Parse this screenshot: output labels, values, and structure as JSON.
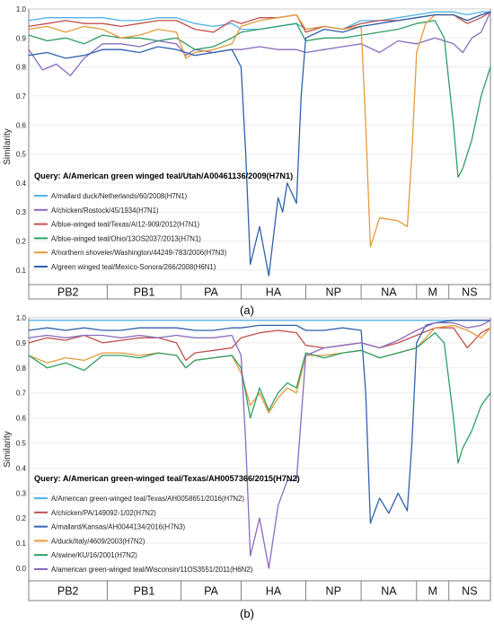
{
  "chart_data": [
    {
      "type": "line",
      "panel_label": "(a)",
      "ylabel": "Similarity",
      "ylim": [
        0.05,
        1.0
      ],
      "yticks": [
        "1.0",
        "0.9",
        "0.8",
        "0.7",
        "0.6",
        "0.5",
        "0.4",
        "0.3",
        "0.2",
        "0.1"
      ],
      "xlim": [
        0,
        100
      ],
      "segments": [
        {
          "name": "PB2",
          "start": 0,
          "end": 17
        },
        {
          "name": "PB1",
          "start": 17,
          "end": 33
        },
        {
          "name": "PA",
          "start": 33,
          "end": 46
        },
        {
          "name": "HA",
          "start": 46,
          "end": 60
        },
        {
          "name": "NP",
          "start": 60,
          "end": 72
        },
        {
          "name": "NA",
          "start": 72,
          "end": 84
        },
        {
          "name": "M",
          "start": 84,
          "end": 91
        },
        {
          "name": "NS",
          "start": 91,
          "end": 100
        }
      ],
      "query": "Query: A/American green winged teal/Utah/A00461136/2009(H7N1)",
      "series": [
        {
          "name": "A/mallard duck/Netherlands/60/2008(H7N1)",
          "color": "#4fb3e8",
          "x": [
            0,
            4,
            8,
            12,
            16,
            20,
            24,
            28,
            32,
            36,
            40,
            44,
            46,
            50,
            54,
            58,
            60,
            64,
            68,
            72,
            76,
            80,
            84,
            88,
            92,
            95,
            98,
            100
          ],
          "y": [
            0.96,
            0.97,
            0.97,
            0.97,
            0.97,
            0.96,
            0.96,
            0.97,
            0.97,
            0.95,
            0.94,
            0.95,
            0.93,
            0.93,
            0.94,
            0.95,
            0.93,
            0.94,
            0.93,
            0.96,
            0.96,
            0.97,
            0.98,
            0.99,
            0.99,
            0.98,
            0.99,
            0.99
          ]
        },
        {
          "name": "A/chicken/Rostock/45/1934(H7N1)",
          "color": "#8a6bbd",
          "x": [
            0,
            3,
            6,
            9,
            12,
            16,
            20,
            24,
            28,
            32,
            34,
            36,
            40,
            44,
            46,
            50,
            54,
            58,
            60,
            64,
            68,
            72,
            76,
            80,
            84,
            88,
            92,
            94,
            96,
            98,
            100
          ],
          "y": [
            0.86,
            0.79,
            0.81,
            0.77,
            0.83,
            0.88,
            0.88,
            0.87,
            0.89,
            0.88,
            0.84,
            0.86,
            0.85,
            0.86,
            0.86,
            0.87,
            0.86,
            0.86,
            0.85,
            0.86,
            0.87,
            0.88,
            0.85,
            0.89,
            0.88,
            0.9,
            0.88,
            0.85,
            0.9,
            0.92,
            0.99
          ]
        },
        {
          "name": "A/blue-winged teal/Texas/AI12-909/2012(H7N1)",
          "color": "#c0504d",
          "x": [
            0,
            4,
            8,
            12,
            16,
            20,
            24,
            28,
            32,
            36,
            40,
            44,
            46,
            50,
            54,
            58,
            60,
            64,
            68,
            72,
            76,
            80,
            84,
            88,
            92,
            95,
            98,
            100
          ],
          "y": [
            0.94,
            0.95,
            0.96,
            0.95,
            0.95,
            0.94,
            0.95,
            0.96,
            0.96,
            0.93,
            0.92,
            0.96,
            0.95,
            0.97,
            0.97,
            0.98,
            0.92,
            0.94,
            0.93,
            0.95,
            0.96,
            0.96,
            0.97,
            0.98,
            0.98,
            0.95,
            0.97,
            0.99
          ]
        },
        {
          "name": "A/blue-winged teal/Ohio/13OS2037/2013(H7N1)",
          "color": "#2e9e64",
          "x": [
            0,
            4,
            8,
            12,
            16,
            20,
            24,
            28,
            32,
            36,
            40,
            44,
            46,
            50,
            54,
            58,
            60,
            64,
            68,
            72,
            76,
            80,
            84,
            88,
            90,
            92,
            93,
            94,
            96,
            98,
            100
          ],
          "y": [
            0.91,
            0.89,
            0.9,
            0.88,
            0.91,
            0.9,
            0.9,
            0.89,
            0.9,
            0.86,
            0.87,
            0.9,
            0.92,
            0.93,
            0.94,
            0.95,
            0.89,
            0.9,
            0.9,
            0.91,
            0.92,
            0.93,
            0.95,
            0.96,
            0.9,
            0.6,
            0.42,
            0.45,
            0.55,
            0.7,
            0.8
          ]
        },
        {
          "name": "A/northern shoveler/Washington/44249-783/2006(H7N3)",
          "color": "#e59a3c",
          "x": [
            0,
            4,
            8,
            12,
            16,
            20,
            24,
            28,
            32,
            34,
            36,
            40,
            44,
            46,
            50,
            54,
            58,
            60,
            64,
            68,
            72,
            73,
            74,
            76,
            80,
            82,
            83,
            84,
            86,
            88,
            92,
            95,
            98,
            100
          ],
          "y": [
            0.93,
            0.94,
            0.92,
            0.94,
            0.93,
            0.9,
            0.91,
            0.93,
            0.92,
            0.83,
            0.85,
            0.86,
            0.88,
            0.94,
            0.96,
            0.97,
            0.98,
            0.93,
            0.94,
            0.93,
            0.94,
            0.6,
            0.18,
            0.28,
            0.27,
            0.25,
            0.5,
            0.85,
            0.95,
            0.98,
            0.98,
            0.96,
            0.98,
            0.99
          ]
        },
        {
          "name": "A/green winged teal/Mexico-Sonora/266/2008(H6N1)",
          "color": "#2e62ad",
          "x": [
            0,
            4,
            8,
            12,
            16,
            20,
            24,
            28,
            32,
            36,
            40,
            44,
            46,
            47,
            48,
            50,
            52,
            54,
            55,
            56,
            58,
            59,
            60,
            64,
            68,
            72,
            76,
            80,
            84,
            88,
            92,
            95,
            98,
            100
          ],
          "y": [
            0.84,
            0.85,
            0.83,
            0.84,
            0.86,
            0.86,
            0.85,
            0.87,
            0.86,
            0.84,
            0.85,
            0.86,
            0.8,
            0.5,
            0.12,
            0.25,
            0.08,
            0.35,
            0.3,
            0.4,
            0.33,
            0.7,
            0.9,
            0.93,
            0.92,
            0.94,
            0.95,
            0.96,
            0.97,
            0.98,
            0.98,
            0.96,
            0.98,
            0.99
          ]
        }
      ]
    },
    {
      "type": "line",
      "panel_label": "(b)",
      "ylabel": "Similarity",
      "ylim": [
        -0.05,
        1.0
      ],
      "yticks": [
        "1.0",
        "0.9",
        "0.8",
        "0.7",
        "0.6",
        "0.5",
        "0.4",
        "0.3",
        "0.2",
        "0.1",
        "0.0"
      ],
      "xlim": [
        0,
        100
      ],
      "segments": [
        {
          "name": "PB2",
          "start": 0,
          "end": 17
        },
        {
          "name": "PB1",
          "start": 17,
          "end": 33
        },
        {
          "name": "PA",
          "start": 33,
          "end": 46
        },
        {
          "name": "HA",
          "start": 46,
          "end": 60
        },
        {
          "name": "NP",
          "start": 60,
          "end": 72
        },
        {
          "name": "NA",
          "start": 72,
          "end": 84
        },
        {
          "name": "M",
          "start": 84,
          "end": 91
        },
        {
          "name": "NS",
          "start": 91,
          "end": 100
        }
      ],
      "query": "Query: A/American green-winged teal/Texas/AH0057366/2015(H7N2)",
      "series": [
        {
          "name": "A/American green-winged teal/Texas/AH0058651/2016(H7N2)",
          "color": "#4fb3e8",
          "x": [
            0,
            10,
            20,
            30,
            40,
            46,
            50,
            60,
            70,
            80,
            84,
            88,
            92,
            96,
            100
          ],
          "y": [
            0.99,
            0.99,
            0.99,
            0.99,
            0.99,
            0.99,
            0.99,
            0.99,
            0.99,
            0.99,
            0.99,
            0.99,
            0.99,
            0.99,
            0.99
          ]
        },
        {
          "name": "A/chicken/PA/149092-1/02(H7N2)",
          "color": "#c0504d",
          "x": [
            0,
            4,
            8,
            12,
            16,
            20,
            24,
            28,
            32,
            34,
            36,
            40,
            44,
            46,
            50,
            54,
            58,
            60,
            64,
            68,
            72,
            76,
            80,
            84,
            88,
            92,
            95,
            98,
            100
          ],
          "y": [
            0.9,
            0.92,
            0.91,
            0.93,
            0.9,
            0.91,
            0.92,
            0.92,
            0.9,
            0.83,
            0.86,
            0.87,
            0.88,
            0.92,
            0.94,
            0.95,
            0.94,
            0.89,
            0.88,
            0.89,
            0.9,
            0.88,
            0.9,
            0.93,
            0.96,
            0.96,
            0.88,
            0.94,
            0.96
          ]
        },
        {
          "name": "A/mallard/Kansas/AH0044134/2016(H7N3)",
          "color": "#2e62ad",
          "x": [
            0,
            4,
            8,
            12,
            16,
            20,
            24,
            28,
            32,
            36,
            40,
            44,
            46,
            50,
            54,
            58,
            60,
            64,
            68,
            72,
            73,
            74,
            76,
            78,
            80,
            82,
            83,
            84,
            86,
            88,
            92,
            95,
            98,
            100
          ],
          "y": [
            0.95,
            0.96,
            0.95,
            0.96,
            0.95,
            0.95,
            0.96,
            0.96,
            0.96,
            0.95,
            0.95,
            0.96,
            0.96,
            0.97,
            0.97,
            0.97,
            0.95,
            0.95,
            0.96,
            0.95,
            0.7,
            0.18,
            0.28,
            0.22,
            0.3,
            0.23,
            0.5,
            0.9,
            0.97,
            0.98,
            0.99,
            0.99,
            0.99,
            0.99
          ]
        },
        {
          "name": "A/duck/Italy/4609/2003(H7N2)",
          "color": "#e59a3c",
          "x": [
            0,
            4,
            8,
            12,
            16,
            20,
            24,
            28,
            32,
            34,
            36,
            40,
            44,
            46,
            48,
            50,
            52,
            54,
            56,
            58,
            60,
            64,
            68,
            72,
            76,
            80,
            84,
            88,
            92,
            95,
            98,
            100
          ],
          "y": [
            0.85,
            0.82,
            0.84,
            0.83,
            0.86,
            0.86,
            0.85,
            0.86,
            0.85,
            0.8,
            0.83,
            0.84,
            0.85,
            0.78,
            0.65,
            0.7,
            0.62,
            0.68,
            0.72,
            0.7,
            0.85,
            0.85,
            0.86,
            0.87,
            0.84,
            0.86,
            0.88,
            0.96,
            0.97,
            0.95,
            0.92,
            0.96
          ]
        },
        {
          "name": "A/swine/KU/16/2001(H7N2)",
          "color": "#2e9e64",
          "x": [
            0,
            4,
            8,
            12,
            16,
            20,
            24,
            28,
            32,
            34,
            36,
            40,
            44,
            46,
            48,
            50,
            52,
            54,
            56,
            58,
            60,
            64,
            68,
            72,
            76,
            80,
            84,
            88,
            90,
            92,
            93,
            94,
            96,
            98,
            100
          ],
          "y": [
            0.85,
            0.8,
            0.82,
            0.79,
            0.85,
            0.85,
            0.84,
            0.86,
            0.85,
            0.8,
            0.83,
            0.84,
            0.85,
            0.8,
            0.6,
            0.72,
            0.63,
            0.7,
            0.74,
            0.72,
            0.86,
            0.84,
            0.86,
            0.87,
            0.84,
            0.86,
            0.88,
            0.94,
            0.9,
            0.6,
            0.42,
            0.48,
            0.55,
            0.65,
            0.7
          ]
        },
        {
          "name": "A/american green-winged teal/Wisconsin/11OS3551/2011(H6N2)",
          "color": "#8a6bbd",
          "x": [
            0,
            4,
            8,
            12,
            16,
            20,
            24,
            28,
            32,
            36,
            40,
            44,
            46,
            47,
            48,
            50,
            52,
            54,
            55,
            56,
            58,
            59,
            60,
            64,
            68,
            72,
            76,
            80,
            84,
            88,
            92,
            95,
            98,
            100
          ],
          "y": [
            0.92,
            0.93,
            0.92,
            0.93,
            0.93,
            0.92,
            0.93,
            0.92,
            0.93,
            0.92,
            0.92,
            0.93,
            0.85,
            0.5,
            0.05,
            0.2,
            0.0,
            0.25,
            0.3,
            0.35,
            0.35,
            0.6,
            0.85,
            0.88,
            0.89,
            0.9,
            0.88,
            0.91,
            0.95,
            0.98,
            0.98,
            0.96,
            0.97,
            0.99
          ]
        }
      ]
    }
  ]
}
